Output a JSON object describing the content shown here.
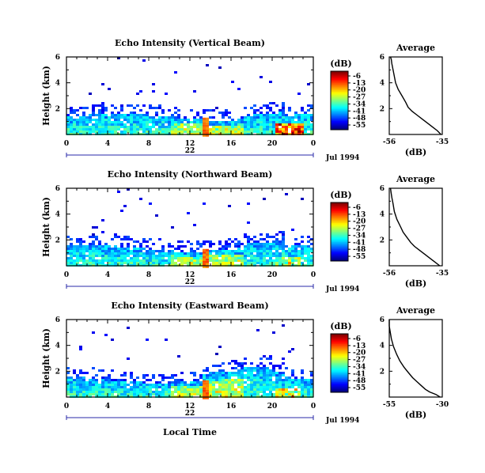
{
  "chart_data": [
    {
      "type": "heatmap",
      "title": "Echo Intensity (Vertical Beam)",
      "ylabel": "Height (km)",
      "xlim": [
        0,
        24
      ],
      "ylim": [
        0,
        6
      ],
      "xticks": [
        "0",
        "4",
        "8",
        "12",
        "16",
        "20",
        "0"
      ],
      "yticks": [
        "2",
        "4",
        "6"
      ],
      "date_label": "22",
      "date_suffix": "Jul 1994",
      "colorbar": {
        "unit": "(dB)",
        "ticks": [
          "-6",
          "-13",
          "-20",
          "-27",
          "-34",
          "-41",
          "-48",
          "-55"
        ]
      },
      "profile": {
        "title": "Average",
        "xlabel": "(dB)",
        "xticks": [
          "-56",
          "-35"
        ],
        "yticks": [
          "2",
          "4",
          "6"
        ],
        "x": [
          -35.5,
          -37,
          -39,
          -41,
          -43,
          -45,
          -47,
          -48.5,
          -49.5,
          -51,
          -52.5,
          -53.5,
          -54,
          -54.5,
          -55,
          -55.2,
          -55.5
        ],
        "y": [
          0,
          0.3,
          0.6,
          0.9,
          1.2,
          1.5,
          1.8,
          2.1,
          2.5,
          3.0,
          3.5,
          4.0,
          4.5,
          5.0,
          5.5,
          5.8,
          6.0
        ]
      }
    },
    {
      "type": "heatmap",
      "title": "Echo Intensity (Northward Beam)",
      "ylabel": "Height (km)",
      "xlim": [
        0,
        24
      ],
      "ylim": [
        0,
        6
      ],
      "xticks": [
        "0",
        "4",
        "8",
        "12",
        "16",
        "20",
        "0"
      ],
      "yticks": [
        "2",
        "4",
        "6"
      ],
      "date_label": "22",
      "date_suffix": "Jul 1994",
      "colorbar": {
        "unit": "(dB)",
        "ticks": [
          "-6",
          "-13",
          "-20",
          "-27",
          "-34",
          "-41",
          "-48",
          "-55"
        ]
      },
      "profile": {
        "title": "Average",
        "xlabel": "(dB)",
        "xticks": [
          "-56",
          "-35"
        ],
        "yticks": [
          "2",
          "4",
          "6"
        ],
        "x": [
          -36,
          -38,
          -40,
          -42,
          -44,
          -46,
          -47.5,
          -49,
          -50.5,
          -51.5,
          -53,
          -54,
          -54.5,
          -55,
          -55.3,
          -55.5
        ],
        "y": [
          0,
          0.3,
          0.6,
          0.9,
          1.2,
          1.5,
          1.8,
          2.2,
          2.6,
          3.0,
          3.6,
          4.2,
          4.8,
          5.3,
          5.7,
          6.0
        ]
      }
    },
    {
      "type": "heatmap",
      "title": "Echo Intensity (Eastward Beam)",
      "ylabel": "Height (km)",
      "xlabel": "Local Time",
      "xlim": [
        0,
        24
      ],
      "ylim": [
        0,
        6
      ],
      "xticks": [
        "0",
        "4",
        "8",
        "12",
        "16",
        "20",
        "0"
      ],
      "yticks": [
        "2",
        "4",
        "6"
      ],
      "date_label": "22",
      "date_suffix": "Jul 1994",
      "colorbar": {
        "unit": "(dB)",
        "ticks": [
          "-6",
          "-13",
          "-20",
          "-27",
          "-34",
          "-41",
          "-48",
          "-55"
        ]
      },
      "profile": {
        "title": "Average",
        "xlabel": "(dB)",
        "xticks": [
          "-55",
          "-30"
        ],
        "yticks": [
          "2",
          "4",
          "6"
        ],
        "x": [
          -31,
          -33,
          -36,
          -38,
          -40,
          -42,
          -44,
          -46,
          -48,
          -50,
          -51.5,
          -53,
          -54,
          -54.5,
          -55,
          -55
        ],
        "y": [
          0,
          0.2,
          0.4,
          0.6,
          0.9,
          1.2,
          1.5,
          1.9,
          2.3,
          2.8,
          3.3,
          3.9,
          4.5,
          5.0,
          5.5,
          6.0
        ]
      }
    }
  ]
}
